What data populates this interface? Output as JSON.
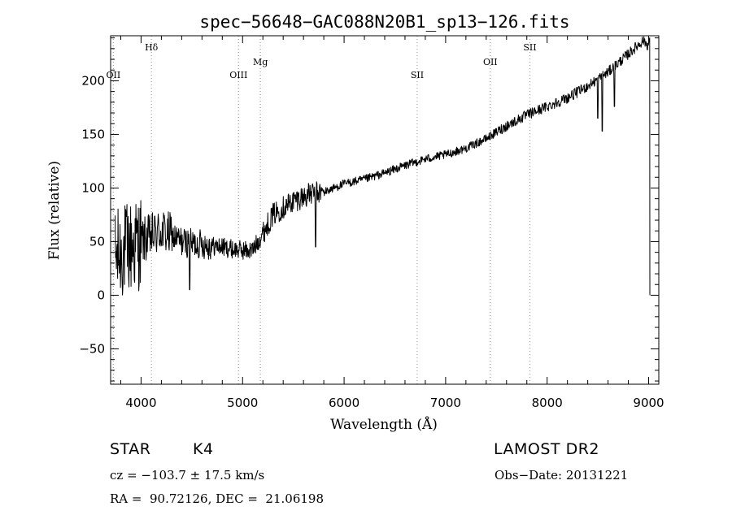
{
  "chart_data": {
    "type": "line",
    "title": "spec−56648−GAC088N20B1_sp13−126.fits",
    "xlabel": "Wavelength (Å)",
    "ylabel": "Flux (relative)",
    "xlim": [
      3700,
      9100
    ],
    "ylim": [
      -83,
      242
    ],
    "xticks": [
      4000,
      5000,
      6000,
      7000,
      8000,
      9000
    ],
    "yticks": [
      -50,
      0,
      50,
      100,
      150,
      200
    ],
    "xtick_labels": [
      "4000",
      "5000",
      "6000",
      "7000",
      "8000",
      "9000"
    ],
    "ytick_labels": [
      "−50",
      "0",
      "50",
      "100",
      "150",
      "200"
    ],
    "grid": false,
    "line_color": "#000000",
    "marker_color": "#a0a0a0",
    "lines_marked": [
      {
        "label": "OII",
        "x": 3727,
        "label_level": "low"
      },
      {
        "label": "Hδ",
        "x": 4102,
        "label_level": "high"
      },
      {
        "label": "OIII",
        "x": 4960,
        "label_level": "low"
      },
      {
        "label": "Mg",
        "x": 5175,
        "label_level": "mid"
      },
      {
        "label": "SII",
        "x": 6720,
        "label_level": "low"
      },
      {
        "label": "OII",
        "x": 7440,
        "label_level": "mid"
      },
      {
        "label": "SII",
        "x": 7830,
        "label_level": "high"
      }
    ],
    "continuum": [
      [
        3700,
        30
      ],
      [
        3800,
        40
      ],
      [
        3900,
        45
      ],
      [
        4000,
        50
      ],
      [
        4100,
        55
      ],
      [
        4200,
        60
      ],
      [
        4300,
        55
      ],
      [
        4400,
        50
      ],
      [
        4500,
        48
      ],
      [
        4600,
        48
      ],
      [
        4700,
        46
      ],
      [
        4800,
        45
      ],
      [
        4900,
        43
      ],
      [
        5000,
        42
      ],
      [
        5100,
        42
      ],
      [
        5200,
        58
      ],
      [
        5300,
        75
      ],
      [
        5400,
        82
      ],
      [
        5500,
        88
      ],
      [
        5600,
        92
      ],
      [
        5700,
        95
      ],
      [
        5800,
        96
      ],
      [
        5900,
        100
      ],
      [
        6000,
        104
      ],
      [
        6200,
        108
      ],
      [
        6400,
        114
      ],
      [
        6600,
        121
      ],
      [
        6800,
        127
      ],
      [
        7000,
        131
      ],
      [
        7200,
        137
      ],
      [
        7400,
        146
      ],
      [
        7600,
        158
      ],
      [
        7800,
        168
      ],
      [
        8000,
        176
      ],
      [
        8200,
        184
      ],
      [
        8400,
        195
      ],
      [
        8600,
        208
      ],
      [
        8800,
        225
      ],
      [
        8950,
        238
      ],
      [
        9000,
        232
      ]
    ],
    "features": [
      {
        "x": 4480,
        "y": 5
      },
      {
        "x": 5720,
        "y": 45
      },
      {
        "x": 8498,
        "y": 165
      },
      {
        "x": 8542,
        "y": 153
      },
      {
        "x": 8662,
        "y": 176
      },
      {
        "x": 9020,
        "y": 0
      }
    ]
  },
  "info": {
    "object_class": "STAR",
    "subclass": "K4",
    "release": "LAMOST DR2",
    "redshift": "cz = −103.7 ± 17.5 km/s",
    "obs_date": "Obs−Date: 20131221",
    "coords": "RA =  90.72126, DEC =  21.06198"
  }
}
